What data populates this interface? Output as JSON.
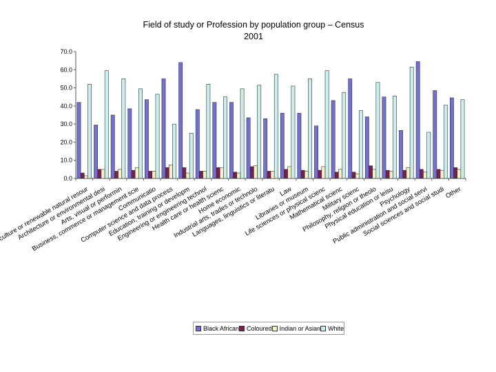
{
  "chart_data": {
    "type": "bar",
    "title": "Field of study or Profession by population group – Census 2001",
    "title_lines": [
      "Field of study or Profession by population group – Census",
      "2001"
    ],
    "xlabel": "",
    "ylabel": "",
    "ylim": [
      0,
      70
    ],
    "yticks": [
      "0.0",
      "10.0",
      "20.0",
      "30.0",
      "40.0",
      "50.0",
      "60.0",
      "70.0"
    ],
    "grid": false,
    "legend": "bottom",
    "categories": [
      "Agriculture or renewable natural resour",
      "Architecture or environmental desi",
      "Arts, visual or performin",
      "Business, commerce or management scie",
      "Communicatio",
      "Computer science and data process",
      "Education, training or developm",
      "Engineering or engineering technol",
      "Health care or health scienc",
      "Home economic",
      "Industrial arts, trades or technolo",
      "Languages, linguistics or literatu",
      "Law",
      "Libraries or museum",
      "Life sciences or physical scienc",
      "Mathematical scienc",
      "Military scienc",
      "Philosophy, religion or theolo",
      "Physical education or leisu",
      "Psychology",
      "Public administration and social servi",
      "Social sciences and social studi",
      "Other"
    ],
    "series": [
      {
        "name": "Black African",
        "color": "#7070d8",
        "values": [
          42.0,
          29.5,
          35.0,
          38.5,
          43.5,
          55.0,
          64.0,
          38.0,
          42.0,
          42.0,
          33.5,
          33.0,
          36.0,
          36.0,
          29.0,
          43.0,
          55.0,
          34.0,
          45.0,
          26.5,
          64.5,
          48.5,
          44.5
        ]
      },
      {
        "name": "Coloured",
        "color": "#7a1e4a",
        "values": [
          3.0,
          5.0,
          4.0,
          4.5,
          4.0,
          6.0,
          6.0,
          4.0,
          6.0,
          3.5,
          6.5,
          4.0,
          5.0,
          4.5,
          4.5,
          3.5,
          3.5,
          7.0,
          4.5,
          4.5,
          5.0,
          5.0,
          6.0
        ]
      },
      {
        "name": "Indian or Asian",
        "color": "#f3f3c4",
        "values": [
          1.5,
          5.0,
          5.0,
          6.0,
          4.0,
          7.5,
          3.0,
          4.0,
          6.0,
          3.0,
          7.0,
          4.0,
          6.5,
          4.0,
          6.5,
          5.0,
          2.5,
          5.0,
          4.0,
          6.0,
          3.5,
          4.5,
          5.0
        ]
      },
      {
        "name": "White",
        "color": "#c8eeee",
        "values": [
          52.0,
          59.5,
          55.0,
          49.5,
          46.5,
          30.0,
          25.0,
          52.0,
          45.0,
          49.5,
          51.5,
          57.5,
          51.0,
          55.0,
          59.5,
          47.5,
          37.5,
          53.0,
          45.5,
          61.5,
          25.5,
          40.5,
          43.5
        ]
      }
    ]
  }
}
